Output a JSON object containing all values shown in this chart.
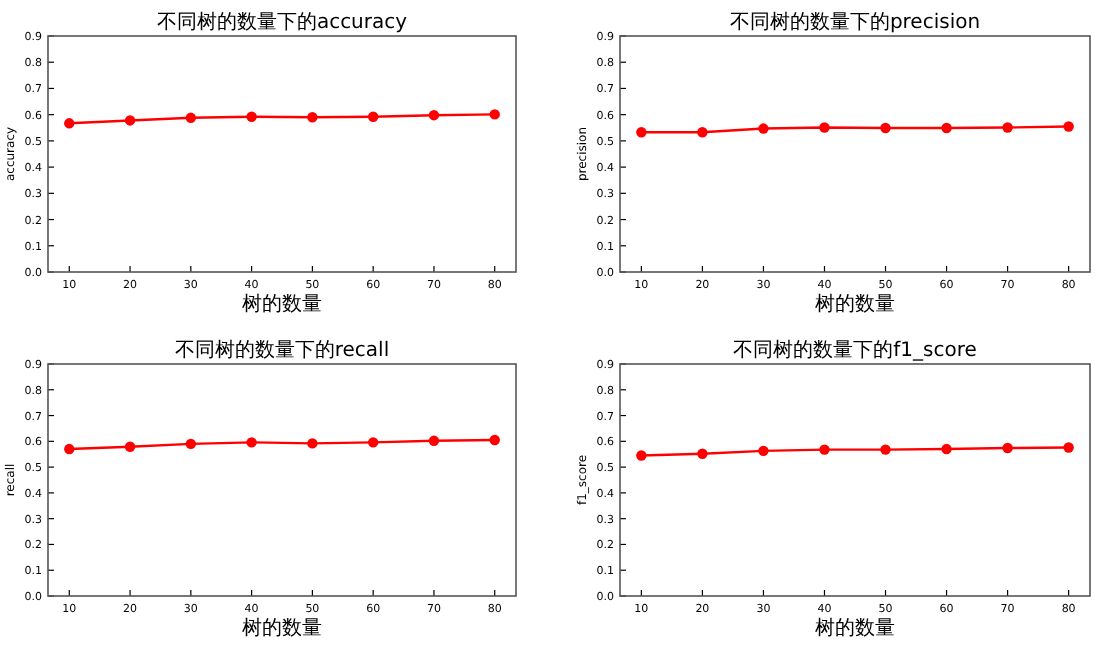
{
  "chart_data": [
    {
      "type": "line",
      "title": "不同树的数量下的accuracy",
      "xlabel": "树的数量",
      "ylabel": "accuracy",
      "x": [
        10,
        20,
        30,
        40,
        50,
        60,
        70,
        80
      ],
      "marker": "circle",
      "line_style": "solid",
      "xlim": [
        6.5,
        83.5
      ],
      "xticks": [
        10,
        20,
        30,
        40,
        50,
        60,
        70,
        80
      ],
      "ylim": [
        0,
        0.9
      ],
      "yticks": [
        {
          "value": 0,
          "label": "0.0"
        },
        {
          "value": 0.1,
          "label": "0.1"
        },
        {
          "value": 0.2,
          "label": "0.2"
        },
        {
          "value": 0.3,
          "label": "0.3"
        },
        {
          "value": 0.4,
          "label": "0.4"
        },
        {
          "value": 0.5,
          "label": "0.5"
        },
        {
          "value": 0.6,
          "label": "0.6"
        },
        {
          "value": 0.7,
          "label": "0.7"
        },
        {
          "value": 0.8,
          "label": "0.8"
        },
        {
          "value": 0.9,
          "label": "0.9"
        }
      ],
      "series": [
        {
          "color": "#ff0000",
          "values": [
            0.567,
            0.578,
            0.588,
            0.592,
            0.59,
            0.592,
            0.598,
            0.601
          ]
        }
      ]
    },
    {
      "type": "line",
      "title": "不同树的数量下的precision",
      "xlabel": "树的数量",
      "ylabel": "precision",
      "x": [
        10,
        20,
        30,
        40,
        50,
        60,
        70,
        80
      ],
      "marker": "circle",
      "line_style": "solid",
      "xlim": [
        6.5,
        83.5
      ],
      "xticks": [
        10,
        20,
        30,
        40,
        50,
        60,
        70,
        80
      ],
      "ylim": [
        0,
        0.9
      ],
      "yticks": [
        {
          "value": 0,
          "label": "0.0"
        },
        {
          "value": 0.1,
          "label": "0.1"
        },
        {
          "value": 0.2,
          "label": "0.2"
        },
        {
          "value": 0.3,
          "label": "0.3"
        },
        {
          "value": 0.4,
          "label": "0.4"
        },
        {
          "value": 0.5,
          "label": "0.5"
        },
        {
          "value": 0.6,
          "label": "0.6"
        },
        {
          "value": 0.7,
          "label": "0.7"
        },
        {
          "value": 0.8,
          "label": "0.8"
        },
        {
          "value": 0.9,
          "label": "0.9"
        }
      ],
      "series": [
        {
          "color": "#ff0000",
          "values": [
            0.533,
            0.533,
            0.547,
            0.551,
            0.549,
            0.549,
            0.551,
            0.555
          ]
        }
      ]
    },
    {
      "type": "line",
      "title": "不同树的数量下的recall",
      "xlabel": "树的数量",
      "ylabel": "recall",
      "x": [
        10,
        20,
        30,
        40,
        50,
        60,
        70,
        80
      ],
      "marker": "circle",
      "line_style": "solid",
      "xlim": [
        6.5,
        83.5
      ],
      "xticks": [
        10,
        20,
        30,
        40,
        50,
        60,
        70,
        80
      ],
      "ylim": [
        0,
        0.9
      ],
      "yticks": [
        {
          "value": 0,
          "label": "0.0"
        },
        {
          "value": 0.1,
          "label": "0.1"
        },
        {
          "value": 0.2,
          "label": "0.2"
        },
        {
          "value": 0.3,
          "label": "0.3"
        },
        {
          "value": 0.4,
          "label": "0.4"
        },
        {
          "value": 0.5,
          "label": "0.5"
        },
        {
          "value": 0.6,
          "label": "0.6"
        },
        {
          "value": 0.7,
          "label": "0.7"
        },
        {
          "value": 0.8,
          "label": "0.8"
        },
        {
          "value": 0.9,
          "label": "0.9"
        }
      ],
      "series": [
        {
          "color": "#ff0000",
          "values": [
            0.57,
            0.579,
            0.59,
            0.596,
            0.592,
            0.596,
            0.602,
            0.605
          ]
        }
      ]
    },
    {
      "type": "line",
      "title": "不同树的数量下的f1_score",
      "xlabel": "树的数量",
      "ylabel": "f1_score",
      "x": [
        10,
        20,
        30,
        40,
        50,
        60,
        70,
        80
      ],
      "marker": "circle",
      "line_style": "solid",
      "xlim": [
        6.5,
        83.5
      ],
      "xticks": [
        10,
        20,
        30,
        40,
        50,
        60,
        70,
        80
      ],
      "ylim": [
        0,
        0.9
      ],
      "yticks": [
        {
          "value": 0,
          "label": "0.0"
        },
        {
          "value": 0.1,
          "label": "0.1"
        },
        {
          "value": 0.2,
          "label": "0.2"
        },
        {
          "value": 0.3,
          "label": "0.3"
        },
        {
          "value": 0.4,
          "label": "0.4"
        },
        {
          "value": 0.5,
          "label": "0.5"
        },
        {
          "value": 0.6,
          "label": "0.6"
        },
        {
          "value": 0.7,
          "label": "0.7"
        },
        {
          "value": 0.8,
          "label": "0.8"
        },
        {
          "value": 0.9,
          "label": "0.9"
        }
      ],
      "series": [
        {
          "color": "#ff0000",
          "values": [
            0.545,
            0.552,
            0.563,
            0.568,
            0.568,
            0.57,
            0.574,
            0.576
          ]
        }
      ]
    }
  ]
}
